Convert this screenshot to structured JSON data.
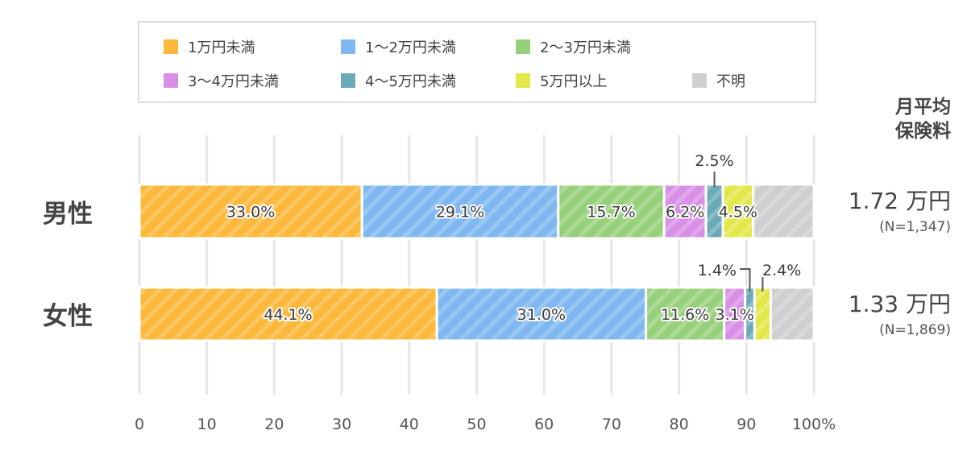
{
  "legend": [
    {
      "label": "1万円未満",
      "color": "#fbb83a"
    },
    {
      "label": "1〜2万円未満",
      "color": "#7fb8f0"
    },
    {
      "label": "2〜3万円未満",
      "color": "#97d07a"
    },
    {
      "label": "3〜4万円未満",
      "color": "#d890e6"
    },
    {
      "label": "4〜5万円未満",
      "color": "#6aaab8"
    },
    {
      "label": "5万円以上",
      "color": "#e3e84a"
    },
    {
      "label": "不明",
      "color": "#cfcfcf"
    }
  ],
  "side_title_line1": "月平均",
  "side_title_line2": "保険料",
  "averages": [
    {
      "value": "1.72 万円",
      "n": "(N=1,347)"
    },
    {
      "value": "1.33 万円",
      "n": "(N=1,869)"
    }
  ],
  "chart_data": {
    "type": "bar",
    "orientation": "horizontal",
    "stacked": true,
    "categories": [
      "男性",
      "女性"
    ],
    "xlim": [
      0,
      100
    ],
    "x_ticks": [
      "0",
      "10",
      "20",
      "30",
      "40",
      "50",
      "60",
      "70",
      "80",
      "90",
      "100%"
    ],
    "grid": true,
    "legend_position": "top",
    "series": [
      {
        "name": "1万円未満",
        "values": [
          33.0,
          44.1
        ],
        "labels": [
          "33.0%",
          "44.1%"
        ]
      },
      {
        "name": "1〜2万円未満",
        "values": [
          29.1,
          31.0
        ],
        "labels": [
          "29.1%",
          "31.0%"
        ]
      },
      {
        "name": "2〜3万円未満",
        "values": [
          15.7,
          11.6
        ],
        "labels": [
          "15.7%",
          "11.6%"
        ]
      },
      {
        "name": "3〜4万円未満",
        "values": [
          6.2,
          3.1
        ],
        "labels": [
          "6.2%",
          "3.1%"
        ]
      },
      {
        "name": "4〜5万円未満",
        "values": [
          2.5,
          1.4
        ],
        "labels": [
          "2.5%",
          "1.4%"
        ]
      },
      {
        "name": "5万円以上",
        "values": [
          4.5,
          2.4
        ],
        "labels": [
          "4.5%",
          "2.4%"
        ]
      },
      {
        "name": "不明",
        "values": [
          9.0,
          6.4
        ],
        "labels": [
          "",
          ""
        ]
      }
    ]
  }
}
